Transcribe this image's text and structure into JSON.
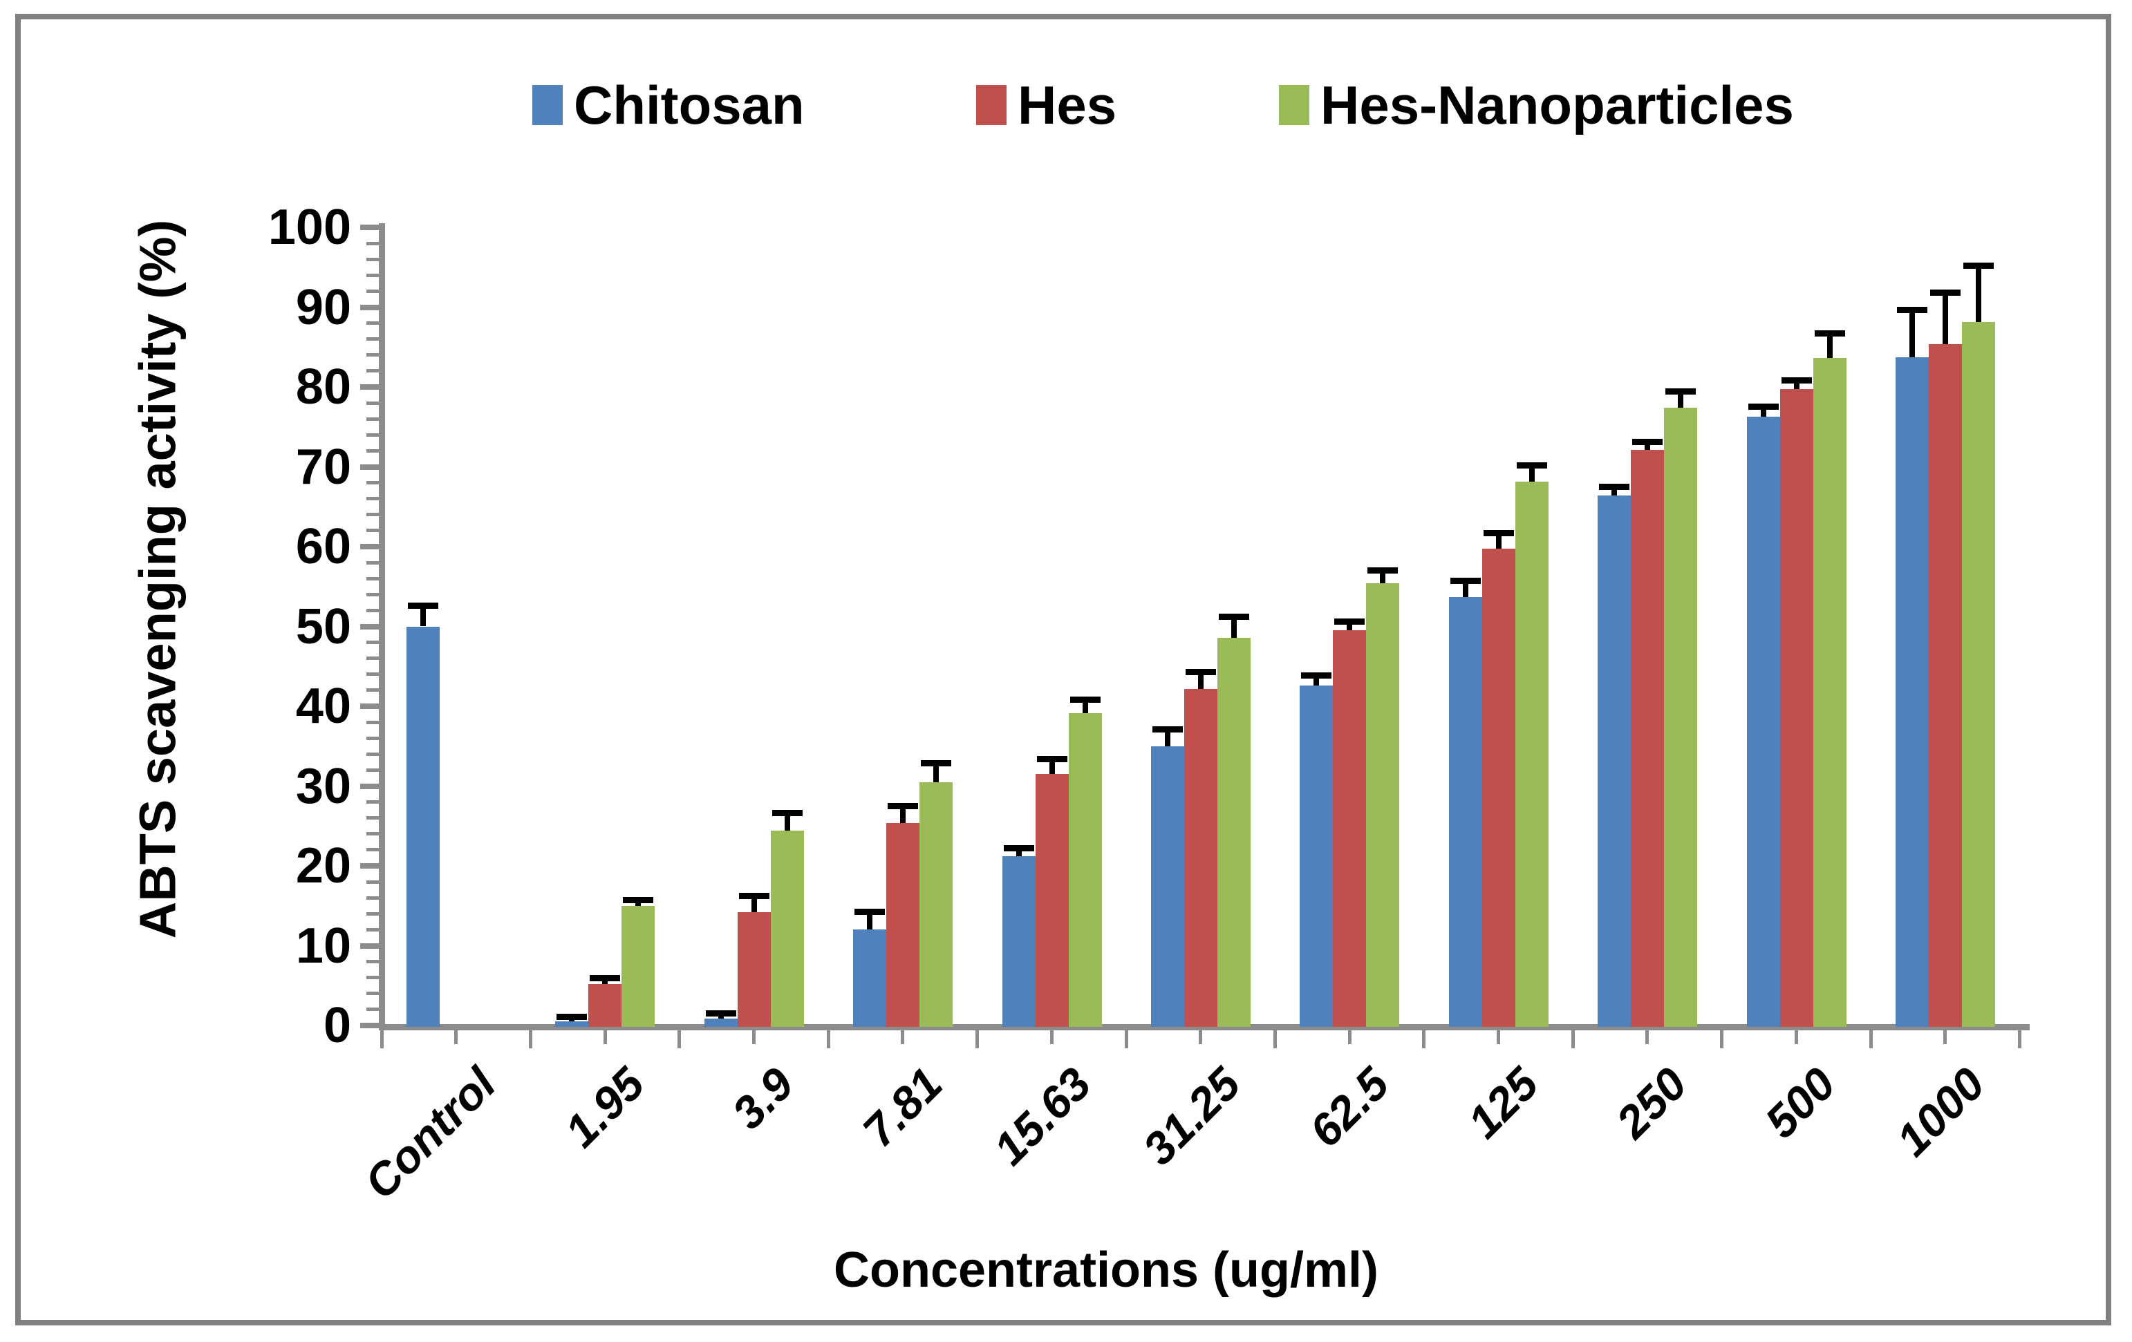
{
  "colors": {
    "chitosan": "#4F81BD",
    "hes": "#C0504D",
    "hes_nanoparticles": "#9BBB59",
    "axis": "#8C8C8C",
    "figure_border": "#808080",
    "error_bar": "#000000",
    "text": "#000000",
    "background": "#FFFFFF"
  },
  "chart_data": {
    "type": "bar",
    "title": "",
    "xlabel": "Concentrations (ug/ml)",
    "ylabel": "ABTS scavenging activity  (%)",
    "ylim": [
      0,
      100
    ],
    "yticks": [
      0,
      10,
      20,
      30,
      40,
      50,
      60,
      70,
      80,
      90,
      100
    ],
    "y_minor_step": 2,
    "grid": "off",
    "legend_position": "top-center",
    "categories": [
      "Control",
      "1.95",
      "3.9",
      "7.81",
      "15.63",
      "31.25",
      "62.5",
      "125",
      "250",
      "500",
      "1000"
    ],
    "series": [
      {
        "name": "Chitosan",
        "color": "#4F81BD",
        "values": [
          50.0,
          0.5,
          0.9,
          12.0,
          21.2,
          35.0,
          42.6,
          53.7,
          66.4,
          76.3,
          83.7
        ],
        "errors": [
          2.4,
          0.4,
          0.4,
          2.0,
          0.8,
          1.9,
          1.0,
          1.8,
          0.9,
          1.0,
          5.7
        ]
      },
      {
        "name": "Hes",
        "color": "#C0504D",
        "values": [
          null,
          5.2,
          14.2,
          25.4,
          31.5,
          42.2,
          49.5,
          59.7,
          72.1,
          79.7,
          85.4
        ],
        "errors": [
          null,
          0.5,
          1.8,
          1.9,
          1.7,
          1.9,
          0.9,
          1.8,
          0.8,
          0.9,
          6.2
        ]
      },
      {
        "name": "Hes-Nanoparticles",
        "color": "#9BBB59",
        "values": [
          null,
          15.0,
          24.4,
          30.5,
          39.1,
          48.6,
          55.4,
          68.1,
          77.4,
          83.6,
          88.1
        ],
        "errors": [
          null,
          0.5,
          2.0,
          2.1,
          1.5,
          2.4,
          1.4,
          1.9,
          1.8,
          2.9,
          6.9
        ]
      }
    ]
  }
}
